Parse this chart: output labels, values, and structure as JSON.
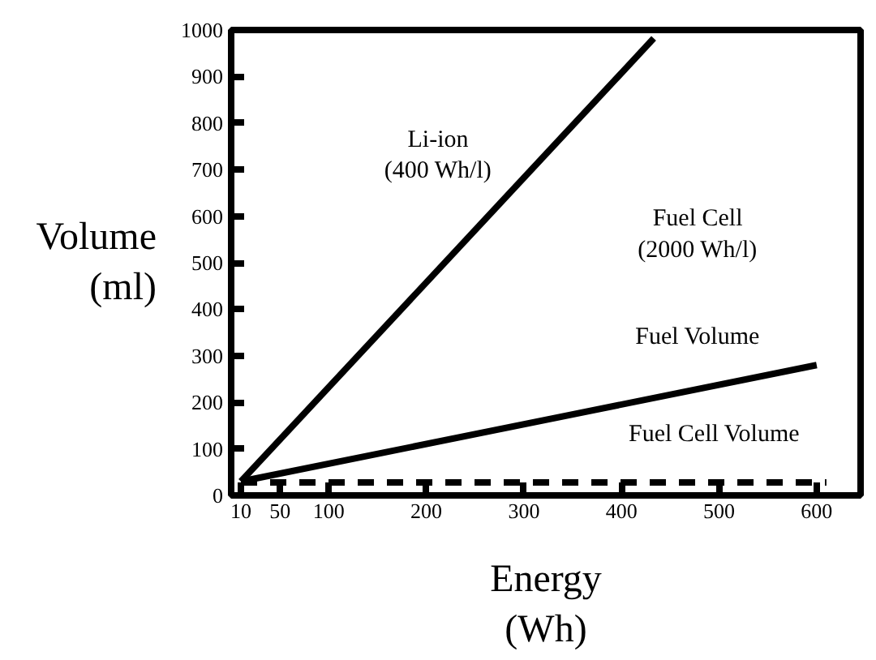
{
  "chart_data": {
    "type": "line",
    "xlabel": "Energy\n(Wh)",
    "ylabel": "Volume\n(ml)",
    "xlim": [
      0,
      645
    ],
    "ylim": [
      0,
      1000
    ],
    "xticks": [
      10,
      50,
      100,
      200,
      300,
      400,
      500,
      600
    ],
    "yticks": [
      0,
      100,
      200,
      300,
      400,
      500,
      600,
      700,
      800,
      900,
      1000
    ],
    "grid": false,
    "marker": "none",
    "series": [
      {
        "x": [
          10,
          433
        ],
        "values": [
          30,
          982
        ],
        "color": "#000000",
        "line_style": "solid"
      },
      {
        "x": [
          10,
          600
        ],
        "values": [
          30,
          280
        ],
        "color": "#000000",
        "line_style": "solid"
      },
      {
        "x": [
          10,
          610
        ],
        "values": [
          28,
          28
        ],
        "color": "#000000",
        "line_style": "dashed"
      }
    ],
    "annotations": [
      "Li-ion\n(400 Wh/l)",
      "Fuel Cell\n(2000 Wh/l)",
      "Fuel Volume",
      "Fuel Cell Volume"
    ]
  }
}
